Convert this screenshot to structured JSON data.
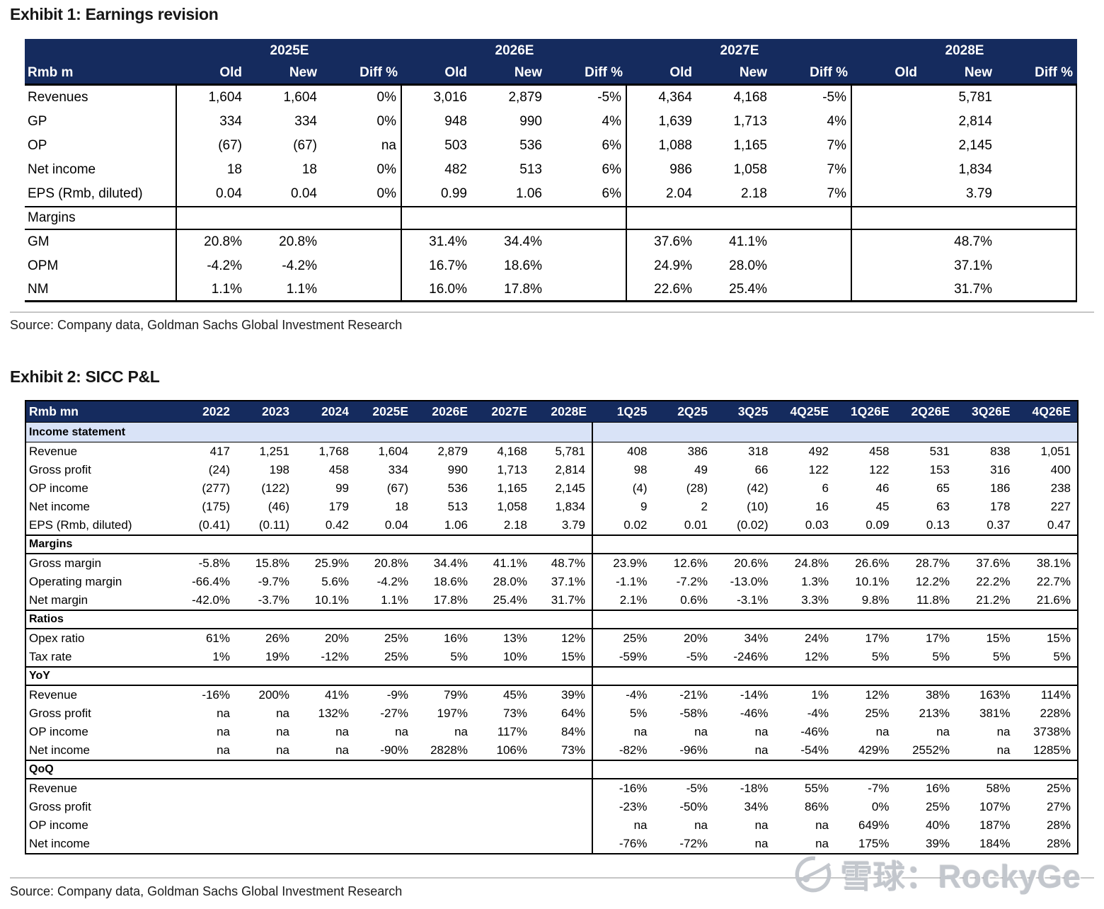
{
  "exhibit1": {
    "title": "Exhibit 1: Earnings revision",
    "unit_label": "Rmb m",
    "col_groups": [
      "2025E",
      "2026E",
      "2027E",
      "2028E"
    ],
    "sub_headers": [
      "Old",
      "New",
      "Diff %"
    ],
    "rows": [
      {
        "label": "Revenues",
        "section": false,
        "values": [
          "1,604",
          "1,604",
          "0%",
          "3,016",
          "2,879",
          "-5%",
          "4,364",
          "4,168",
          "-5%",
          "",
          "5,781",
          ""
        ]
      },
      {
        "label": "GP",
        "section": false,
        "values": [
          "334",
          "334",
          "0%",
          "948",
          "990",
          "4%",
          "1,639",
          "1,713",
          "4%",
          "",
          "2,814",
          ""
        ]
      },
      {
        "label": "OP",
        "section": false,
        "values": [
          "(67)",
          "(67)",
          "na",
          "503",
          "536",
          "6%",
          "1,088",
          "1,165",
          "7%",
          "",
          "2,145",
          ""
        ]
      },
      {
        "label": "Net income",
        "section": false,
        "values": [
          "18",
          "18",
          "0%",
          "482",
          "513",
          "6%",
          "986",
          "1,058",
          "7%",
          "",
          "1,834",
          ""
        ]
      },
      {
        "label": "EPS (Rmb, diluted)",
        "section": false,
        "values": [
          "0.04",
          "0.04",
          "0%",
          "0.99",
          "1.06",
          "6%",
          "2.04",
          "2.18",
          "7%",
          "",
          "3.79",
          ""
        ]
      },
      {
        "label": "Margins",
        "section": true,
        "values": []
      },
      {
        "label": "GM",
        "section": false,
        "values": [
          "20.8%",
          "20.8%",
          "",
          "31.4%",
          "34.4%",
          "",
          "37.6%",
          "41.1%",
          "",
          "",
          "48.7%",
          ""
        ]
      },
      {
        "label": "OPM",
        "section": false,
        "values": [
          "-4.2%",
          "-4.2%",
          "",
          "16.7%",
          "18.6%",
          "",
          "24.9%",
          "28.0%",
          "",
          "",
          "37.1%",
          ""
        ]
      },
      {
        "label": "NM",
        "section": false,
        "values": [
          "1.1%",
          "1.1%",
          "",
          "16.0%",
          "17.8%",
          "",
          "22.6%",
          "25.4%",
          "",
          "",
          "31.7%",
          ""
        ]
      }
    ],
    "source": "Source: Company data, Goldman Sachs Global Investment Research"
  },
  "exhibit2": {
    "title": "Exhibit 2: SICC P&L",
    "unit_label": "Rmb mn",
    "columns": [
      "2022",
      "2023",
      "2024",
      "2025E",
      "2026E",
      "2027E",
      "2028E",
      "1Q25",
      "2Q25",
      "3Q25",
      "4Q25E",
      "1Q26E",
      "2Q26E",
      "3Q26E",
      "4Q26E"
    ],
    "rows": [
      {
        "label": "Income statement",
        "section": true,
        "style": "blue",
        "values": []
      },
      {
        "label": "Revenue",
        "section": false,
        "values": [
          "417",
          "1,251",
          "1,768",
          "1,604",
          "2,879",
          "4,168",
          "5,781",
          "408",
          "386",
          "318",
          "492",
          "458",
          "531",
          "838",
          "1,051"
        ]
      },
      {
        "label": "Gross profit",
        "section": false,
        "values": [
          "(24)",
          "198",
          "458",
          "334",
          "990",
          "1,713",
          "2,814",
          "98",
          "49",
          "66",
          "122",
          "122",
          "153",
          "316",
          "400"
        ]
      },
      {
        "label": "OP income",
        "section": false,
        "values": [
          "(277)",
          "(122)",
          "99",
          "(67)",
          "536",
          "1,165",
          "2,145",
          "(4)",
          "(28)",
          "(42)",
          "6",
          "46",
          "65",
          "186",
          "238"
        ]
      },
      {
        "label": "Net income",
        "section": false,
        "values": [
          "(175)",
          "(46)",
          "179",
          "18",
          "513",
          "1,058",
          "1,834",
          "9",
          "2",
          "(10)",
          "16",
          "45",
          "63",
          "178",
          "227"
        ]
      },
      {
        "label": "EPS (Rmb, diluted)",
        "section": false,
        "values": [
          "(0.41)",
          "(0.11)",
          "0.42",
          "0.04",
          "1.06",
          "2.18",
          "3.79",
          "0.02",
          "0.01",
          "(0.02)",
          "0.03",
          "0.09",
          "0.13",
          "0.37",
          "0.47"
        ]
      },
      {
        "label": "Margins",
        "section": true,
        "style": "plain",
        "values": []
      },
      {
        "label": "Gross margin",
        "section": false,
        "values": [
          "-5.8%",
          "15.8%",
          "25.9%",
          "20.8%",
          "34.4%",
          "41.1%",
          "48.7%",
          "23.9%",
          "12.6%",
          "20.6%",
          "24.8%",
          "26.6%",
          "28.7%",
          "37.6%",
          "38.1%"
        ]
      },
      {
        "label": "Operating margin",
        "section": false,
        "values": [
          "-66.4%",
          "-9.7%",
          "5.6%",
          "-4.2%",
          "18.6%",
          "28.0%",
          "37.1%",
          "-1.1%",
          "-7.2%",
          "-13.0%",
          "1.3%",
          "10.1%",
          "12.2%",
          "22.2%",
          "22.7%"
        ]
      },
      {
        "label": "Net margin",
        "section": false,
        "values": [
          "-42.0%",
          "-3.7%",
          "10.1%",
          "1.1%",
          "17.8%",
          "25.4%",
          "31.7%",
          "2.1%",
          "0.6%",
          "-3.1%",
          "3.3%",
          "9.8%",
          "11.8%",
          "21.2%",
          "21.6%"
        ]
      },
      {
        "label": "Ratios",
        "section": true,
        "style": "plain",
        "values": []
      },
      {
        "label": "Opex ratio",
        "section": false,
        "values": [
          "61%",
          "26%",
          "20%",
          "25%",
          "16%",
          "13%",
          "12%",
          "25%",
          "20%",
          "34%",
          "24%",
          "17%",
          "17%",
          "15%",
          "15%"
        ]
      },
      {
        "label": "Tax rate",
        "section": false,
        "values": [
          "1%",
          "19%",
          "-12%",
          "25%",
          "5%",
          "10%",
          "15%",
          "-59%",
          "-5%",
          "-246%",
          "12%",
          "5%",
          "5%",
          "5%",
          "5%"
        ]
      },
      {
        "label": "YoY",
        "section": true,
        "style": "plain",
        "values": []
      },
      {
        "label": "Revenue",
        "section": false,
        "values": [
          "-16%",
          "200%",
          "41%",
          "-9%",
          "79%",
          "45%",
          "39%",
          "-4%",
          "-21%",
          "-14%",
          "1%",
          "12%",
          "38%",
          "163%",
          "114%"
        ]
      },
      {
        "label": "Gross profit",
        "section": false,
        "values": [
          "na",
          "na",
          "132%",
          "-27%",
          "197%",
          "73%",
          "64%",
          "5%",
          "-58%",
          "-46%",
          "-4%",
          "25%",
          "213%",
          "381%",
          "228%"
        ]
      },
      {
        "label": "OP income",
        "section": false,
        "values": [
          "na",
          "na",
          "na",
          "na",
          "na",
          "117%",
          "84%",
          "na",
          "na",
          "na",
          "-46%",
          "na",
          "na",
          "na",
          "3738%"
        ]
      },
      {
        "label": "Net income",
        "section": false,
        "values": [
          "na",
          "na",
          "na",
          "-90%",
          "2828%",
          "106%",
          "73%",
          "-82%",
          "-96%",
          "na",
          "-54%",
          "429%",
          "2552%",
          "na",
          "1285%"
        ]
      },
      {
        "label": "QoQ",
        "section": true,
        "style": "plain",
        "values": []
      },
      {
        "label": "Revenue",
        "section": false,
        "values": [
          "",
          "",
          "",
          "",
          "",
          "",
          "",
          "-16%",
          "-5%",
          "-18%",
          "55%",
          "-7%",
          "16%",
          "58%",
          "25%"
        ]
      },
      {
        "label": "Gross profit",
        "section": false,
        "values": [
          "",
          "",
          "",
          "",
          "",
          "",
          "",
          "-23%",
          "-50%",
          "34%",
          "86%",
          "0%",
          "25%",
          "107%",
          "27%"
        ]
      },
      {
        "label": "OP income",
        "section": false,
        "values": [
          "",
          "",
          "",
          "",
          "",
          "",
          "",
          "na",
          "na",
          "na",
          "na",
          "649%",
          "40%",
          "187%",
          "28%"
        ]
      },
      {
        "label": "Net income",
        "section": false,
        "values": [
          "",
          "",
          "",
          "",
          "",
          "",
          "",
          "-76%",
          "-72%",
          "na",
          "na",
          "175%",
          "39%",
          "184%",
          "28%"
        ]
      }
    ],
    "source": "Source: Company data, Goldman Sachs Global Investment Research"
  },
  "watermark": {
    "text": "雪球：RockyGe",
    "logo": "snowball-logo",
    "color": "#c3c7cd"
  },
  "colors": {
    "header_navy": "#152B5E",
    "section_blue": "#D9E3F7",
    "border_black": "#000000",
    "rule_gray": "#c6c6c6"
  }
}
